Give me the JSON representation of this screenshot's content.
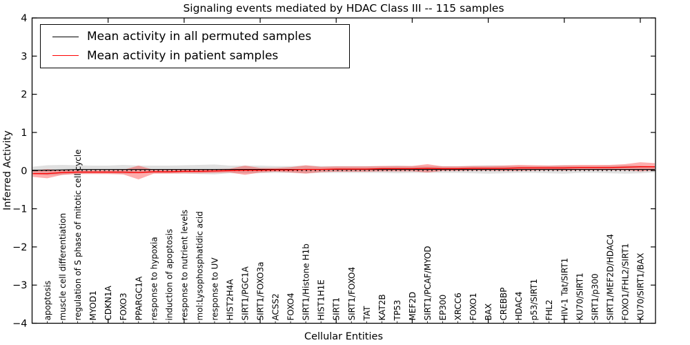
{
  "title": "Signaling events mediated by HDAC Class III -- 115 samples",
  "axes": {
    "x_label": "Cellular Entities",
    "y_label": "Inferred Activity",
    "ylim": [
      -4,
      4
    ],
    "y_ticks": [
      4,
      3,
      2,
      1,
      0,
      -1,
      -2,
      -3,
      -4
    ],
    "x_major_tick_step": 5
  },
  "legend": {
    "items": [
      {
        "label": "Mean activity in all permuted samples",
        "color": "#000000"
      },
      {
        "label": "Mean activity in patient samples",
        "color": "#ff0000"
      }
    ],
    "position": "upper left"
  },
  "colors": {
    "permuted_line": "#000000",
    "patient_line": "#ff0000",
    "permuted_band": "rgba(0,0,0,0.12)",
    "patient_band": "rgba(255,0,0,0.32)",
    "reference_line": "#000000",
    "frame": "#000000",
    "background": "#ffffff"
  },
  "chart_data": {
    "type": "line",
    "title": "Signaling events mediated by HDAC Class III -- 115 samples",
    "xlabel": "Cellular Entities",
    "ylabel": "Inferred Activity",
    "ylim": [
      -4,
      4
    ],
    "grid": false,
    "legend_position": "upper left",
    "reference_line_y": 0,
    "categories": [
      "apoptosis",
      "muscle cell differentiation",
      "regulation of S phase of mitotic cell cycle",
      "MYOD1",
      "CDKN1A",
      "FOXO3",
      "PPARGC1A",
      "response to hypoxia",
      "induction of apoptosis",
      "response to nutrient levels",
      "mol:Lysophosphatidic acid",
      "response to UV",
      "HIST2H4A",
      "SIRT1/PGC1A",
      "SIRT1/FOXO3a",
      "ACSS2",
      "FOXO4",
      "SIRT1/Histone H1b",
      "HIST1H1E",
      "SIRT1",
      "SIRT1/FOXO4",
      "TAT",
      "KAT2B",
      "TP53",
      "MEF2D",
      "SIRT1/PCAF/MYOD",
      "EP300",
      "XRCC6",
      "FOXO1",
      "BAX",
      "CREBBP",
      "HDAC4",
      "p53/SIRT1",
      "FHL2",
      "HIV-1 Tat/SIRT1",
      "KU70/SIRT1",
      "SIRT1/p300",
      "SIRT1/MEF2D/HDAC4",
      "FOXO1/FHL2/SIRT1",
      "KU70/SIRT1/BAX"
    ],
    "series": [
      {
        "name": "Mean activity in all permuted samples",
        "color": "#000000",
        "style": "solid",
        "values": [
          0.01,
          0.02,
          0.03,
          0.03,
          0.03,
          0.03,
          0.03,
          0.03,
          0.03,
          0.03,
          0.03,
          0.03,
          0.03,
          0.03,
          0.03,
          0.03,
          0.03,
          0.03,
          0.03,
          0.03,
          0.03,
          0.03,
          0.03,
          0.03,
          0.03,
          0.03,
          0.03,
          0.03,
          0.03,
          0.03,
          0.03,
          0.03,
          0.03,
          0.03,
          0.03,
          0.03,
          0.03,
          0.03,
          0.03,
          0.03
        ]
      },
      {
        "name": "Mean activity in patient samples",
        "color": "#ff0000",
        "style": "solid",
        "values": [
          -0.08,
          -0.05,
          -0.04,
          -0.04,
          -0.04,
          -0.04,
          -0.05,
          -0.03,
          -0.03,
          -0.02,
          -0.02,
          -0.01,
          0.0,
          0.01,
          0.01,
          0.02,
          0.02,
          0.03,
          0.03,
          0.04,
          0.04,
          0.04,
          0.05,
          0.05,
          0.05,
          0.06,
          0.05,
          0.05,
          0.06,
          0.06,
          0.06,
          0.07,
          0.07,
          0.07,
          0.07,
          0.08,
          0.08,
          0.08,
          0.09,
          0.1
        ]
      },
      {
        "name": "Permuted samples band half-width",
        "color": "rgba(0,0,0,0.12)",
        "style": "band",
        "values": [
          0.13,
          0.13,
          0.11,
          0.1,
          0.1,
          0.12,
          0.1,
          0.1,
          0.1,
          0.11,
          0.12,
          0.13,
          0.1,
          0.1,
          0.1,
          0.09,
          0.09,
          0.1,
          0.09,
          0.09,
          0.09,
          0.09,
          0.09,
          0.1,
          0.09,
          0.09,
          0.09,
          0.09,
          0.1,
          0.11,
          0.1,
          0.09,
          0.09,
          0.1,
          0.11,
          0.09,
          0.09,
          0.1,
          0.11,
          0.1
        ]
      },
      {
        "name": "Patient samples band half-width",
        "color": "rgba(255,0,0,0.32)",
        "style": "band",
        "values": [
          0.12,
          0.06,
          0.05,
          0.05,
          0.05,
          0.06,
          0.18,
          0.05,
          0.05,
          0.05,
          0.05,
          0.05,
          0.05,
          0.12,
          0.06,
          0.05,
          0.07,
          0.11,
          0.07,
          0.07,
          0.07,
          0.07,
          0.07,
          0.07,
          0.07,
          0.11,
          0.06,
          0.06,
          0.06,
          0.06,
          0.07,
          0.08,
          0.07,
          0.06,
          0.07,
          0.07,
          0.07,
          0.07,
          0.08,
          0.12
        ]
      }
    ]
  }
}
